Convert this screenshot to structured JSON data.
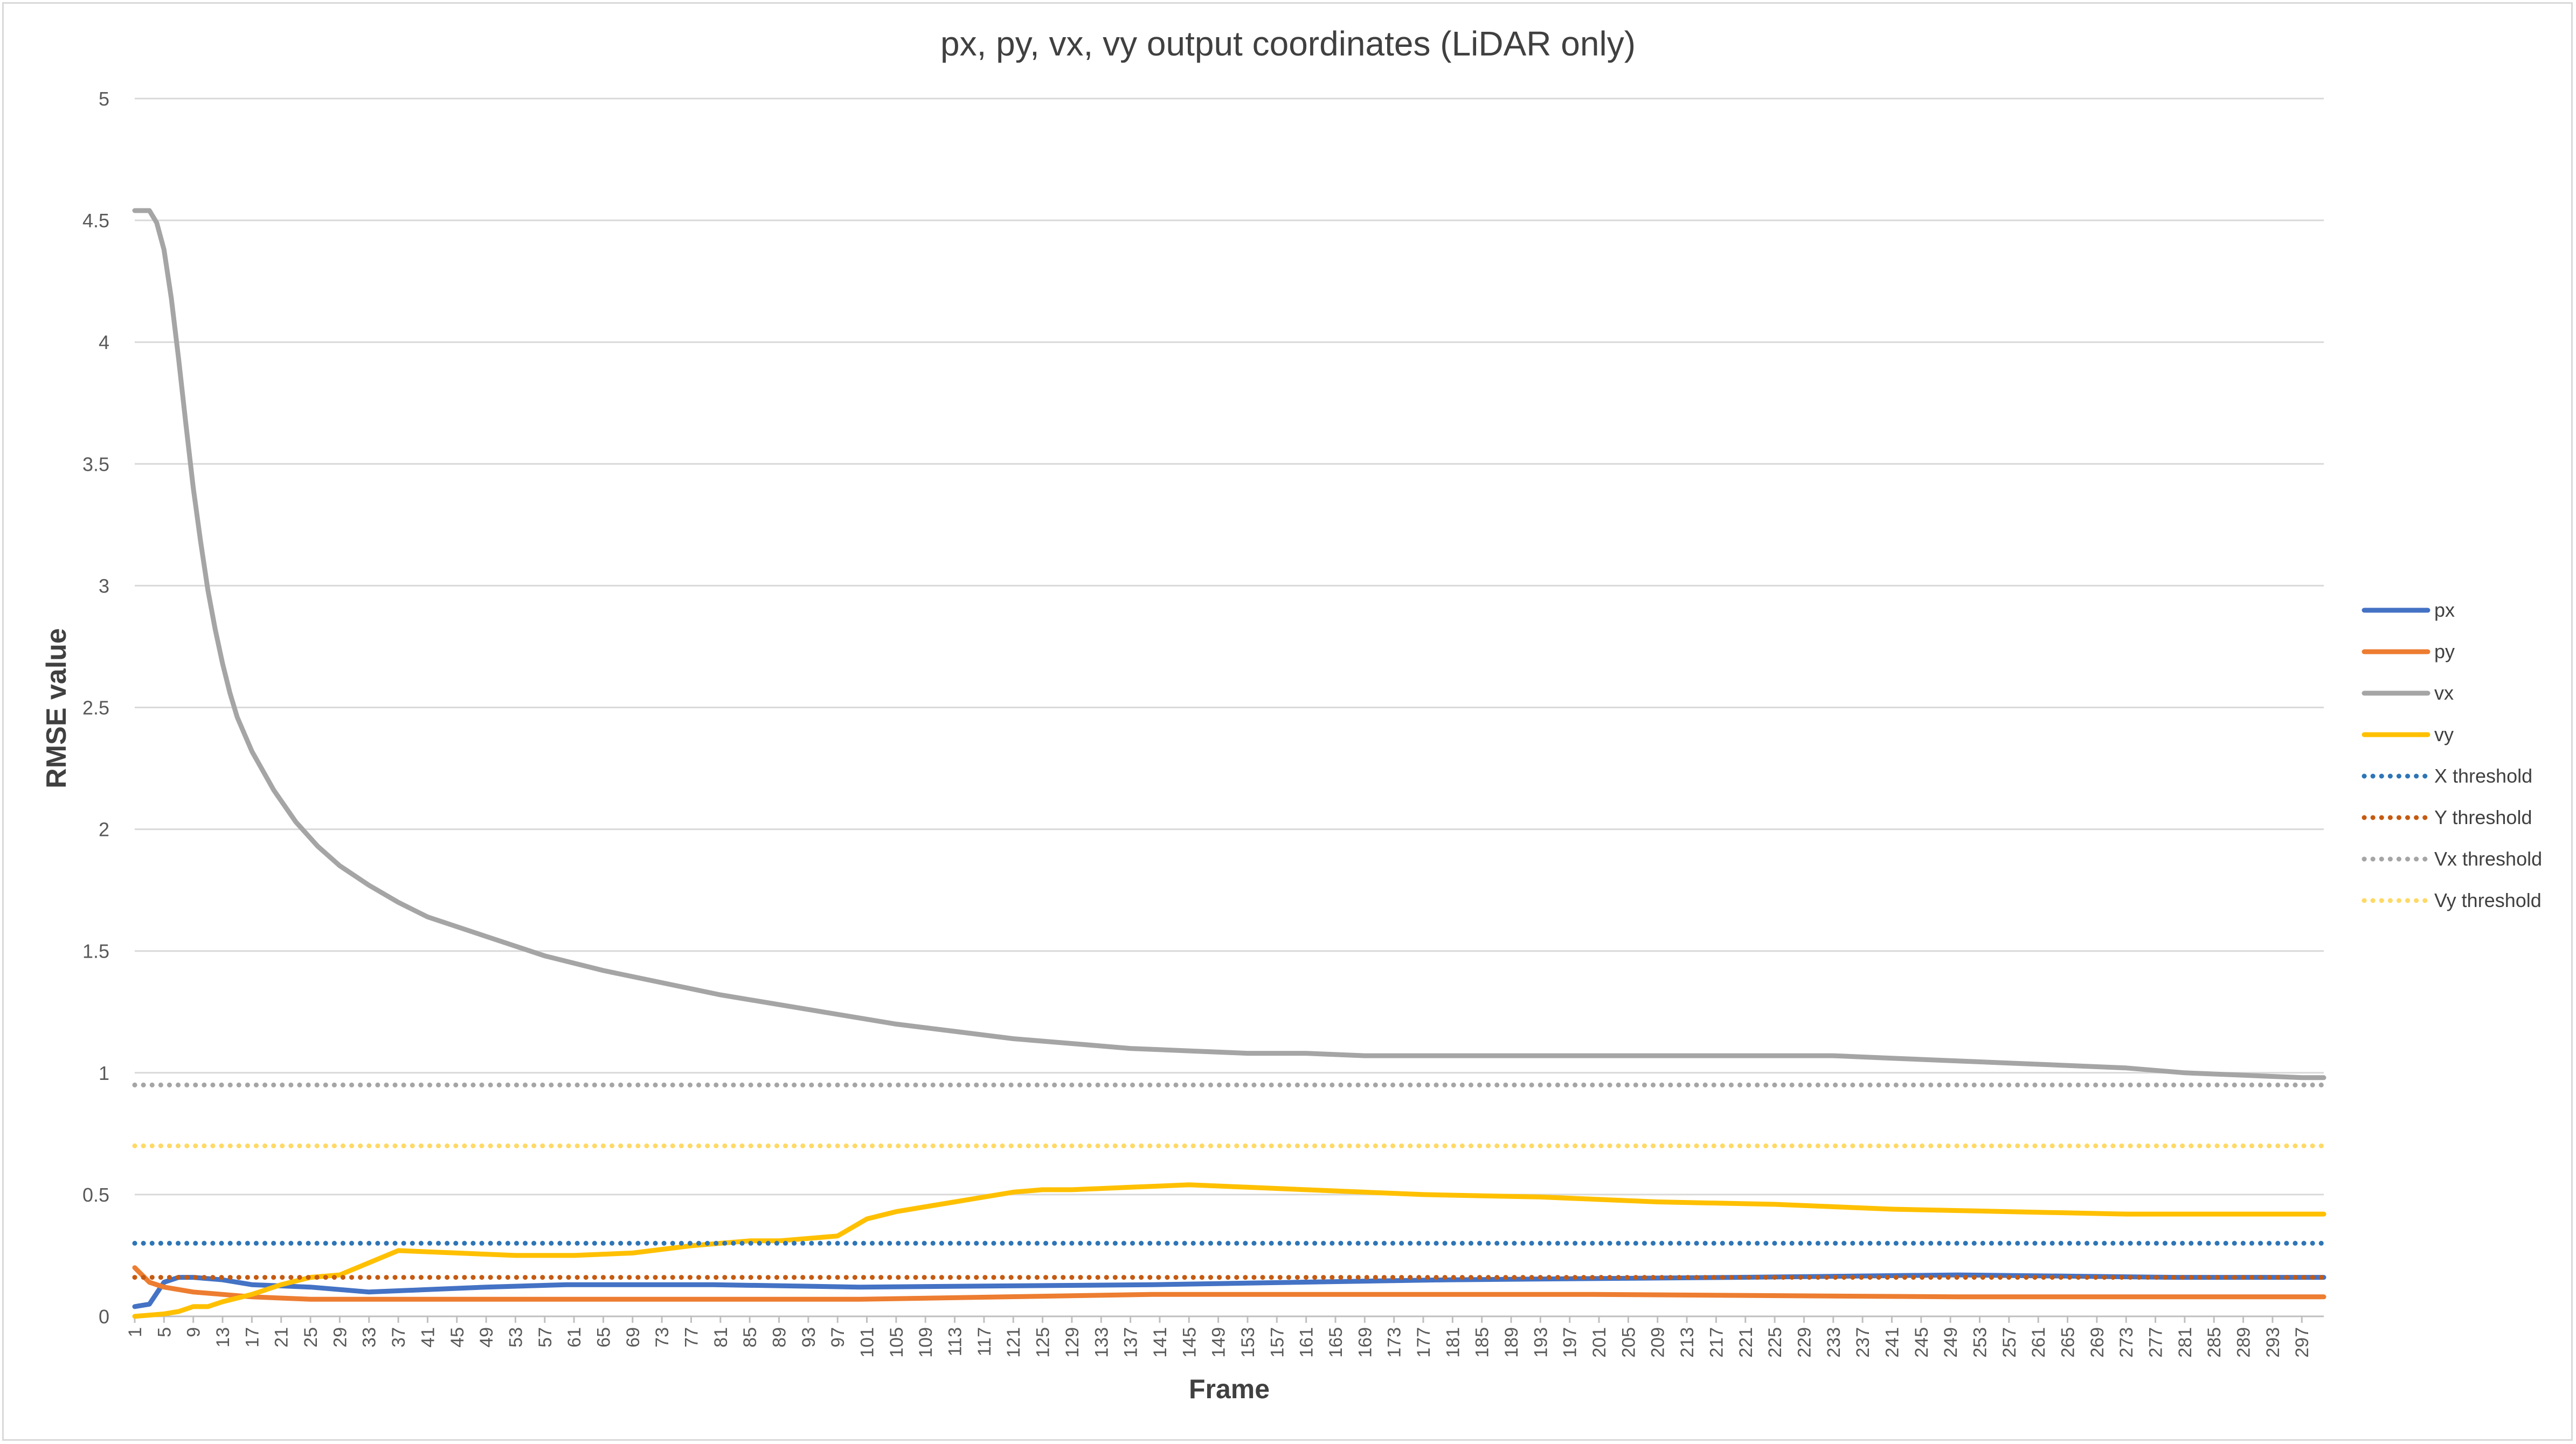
{
  "chart_data": {
    "type": "line",
    "title": "px, py, vx, vy output coordinates (LiDAR only)",
    "xlabel": "Frame",
    "ylabel": "RMSE value",
    "ylim": [
      0,
      5
    ],
    "yticks": [
      "0",
      "0.5",
      "1",
      "1.5",
      "2",
      "2.5",
      "3",
      "3.5",
      "4",
      "4.5",
      "5"
    ],
    "xlim": [
      1,
      300
    ],
    "xtick_labels": [
      "1",
      "5",
      "9",
      "13",
      "17",
      "21",
      "25",
      "29",
      "33",
      "37",
      "41",
      "45",
      "49",
      "53",
      "57",
      "61",
      "65",
      "69",
      "73",
      "77",
      "81",
      "85",
      "89",
      "93",
      "97",
      "101",
      "105",
      "109",
      "113",
      "117",
      "121",
      "125",
      "129",
      "133",
      "137",
      "141",
      "145",
      "149",
      "153",
      "157",
      "161",
      "165",
      "169",
      "173",
      "177",
      "181",
      "185",
      "189",
      "193",
      "197",
      "201",
      "205",
      "209",
      "213",
      "217",
      "221",
      "225",
      "229",
      "233",
      "237",
      "241",
      "245",
      "249",
      "253",
      "257",
      "261",
      "265",
      "269",
      "273",
      "277",
      "281",
      "285",
      "289",
      "293",
      "297"
    ],
    "grid": true,
    "legend_position": "right",
    "series": [
      {
        "name": "px",
        "color": "#4472c4",
        "style": "solid",
        "x": [
          1,
          3,
          5,
          7,
          9,
          13,
          17,
          25,
          33,
          41,
          49,
          60,
          80,
          100,
          140,
          180,
          220,
          250,
          280,
          300
        ],
        "y": [
          0.04,
          0.05,
          0.14,
          0.16,
          0.16,
          0.15,
          0.13,
          0.12,
          0.1,
          0.11,
          0.12,
          0.13,
          0.13,
          0.12,
          0.13,
          0.15,
          0.16,
          0.17,
          0.16,
          0.16
        ]
      },
      {
        "name": "py",
        "color": "#ed7d31",
        "style": "solid",
        "x": [
          1,
          3,
          5,
          9,
          17,
          25,
          33,
          60,
          80,
          100,
          120,
          140,
          160,
          200,
          250,
          300
        ],
        "y": [
          0.2,
          0.14,
          0.12,
          0.1,
          0.08,
          0.07,
          0.07,
          0.07,
          0.07,
          0.07,
          0.08,
          0.09,
          0.09,
          0.09,
          0.08,
          0.08
        ]
      },
      {
        "name": "vx",
        "color": "#a5a5a5",
        "style": "solid",
        "x": [
          1,
          2,
          3,
          4,
          5,
          6,
          7,
          8,
          9,
          10,
          11,
          12,
          13,
          14,
          15,
          17,
          20,
          23,
          26,
          29,
          33,
          37,
          41,
          45,
          49,
          57,
          65,
          73,
          81,
          89,
          97,
          105,
          113,
          121,
          129,
          137,
          145,
          153,
          161,
          169,
          177,
          185,
          193,
          201,
          209,
          217,
          225,
          233,
          241,
          249,
          257,
          265,
          273,
          281,
          289,
          297,
          300
        ],
        "y": [
          4.54,
          4.54,
          4.54,
          4.49,
          4.38,
          4.18,
          3.93,
          3.66,
          3.4,
          3.18,
          2.98,
          2.82,
          2.68,
          2.56,
          2.46,
          2.32,
          2.16,
          2.03,
          1.93,
          1.85,
          1.77,
          1.7,
          1.64,
          1.6,
          1.56,
          1.48,
          1.42,
          1.37,
          1.32,
          1.28,
          1.24,
          1.2,
          1.17,
          1.14,
          1.12,
          1.1,
          1.09,
          1.08,
          1.08,
          1.07,
          1.07,
          1.07,
          1.07,
          1.07,
          1.07,
          1.07,
          1.07,
          1.07,
          1.06,
          1.05,
          1.04,
          1.03,
          1.02,
          1.0,
          0.99,
          0.98,
          0.98
        ]
      },
      {
        "name": "vy",
        "color": "#ffc000",
        "style": "solid",
        "x": [
          1,
          5,
          7,
          9,
          11,
          13,
          17,
          21,
          25,
          29,
          33,
          37,
          45,
          53,
          61,
          69,
          77,
          81,
          85,
          89,
          93,
          97,
          101,
          105,
          109,
          113,
          117,
          121,
          125,
          129,
          137,
          145,
          153,
          161,
          177,
          193,
          209,
          225,
          241,
          257,
          273,
          289,
          300
        ],
        "y": [
          0.0,
          0.01,
          0.02,
          0.04,
          0.04,
          0.06,
          0.09,
          0.13,
          0.16,
          0.17,
          0.22,
          0.27,
          0.26,
          0.25,
          0.25,
          0.26,
          0.29,
          0.3,
          0.31,
          0.31,
          0.32,
          0.33,
          0.4,
          0.43,
          0.45,
          0.47,
          0.49,
          0.51,
          0.52,
          0.52,
          0.53,
          0.54,
          0.53,
          0.52,
          0.5,
          0.49,
          0.47,
          0.46,
          0.44,
          0.43,
          0.42,
          0.42,
          0.42
        ]
      },
      {
        "name": "X threshold",
        "color": "#2e75b6",
        "style": "dotted",
        "x": [
          1,
          300
        ],
        "y": [
          0.3,
          0.3
        ]
      },
      {
        "name": "Y threshold",
        "color": "#c55a11",
        "style": "dotted",
        "x": [
          1,
          300
        ],
        "y": [
          0.16,
          0.16
        ]
      },
      {
        "name": "Vx threshold",
        "color": "#a5a5a5",
        "style": "dotted",
        "x": [
          1,
          300
        ],
        "y": [
          0.95,
          0.95
        ]
      },
      {
        "name": "Vy threshold",
        "color": "#ffd966",
        "style": "dotted",
        "x": [
          1,
          300
        ],
        "y": [
          0.7,
          0.7
        ]
      }
    ]
  }
}
